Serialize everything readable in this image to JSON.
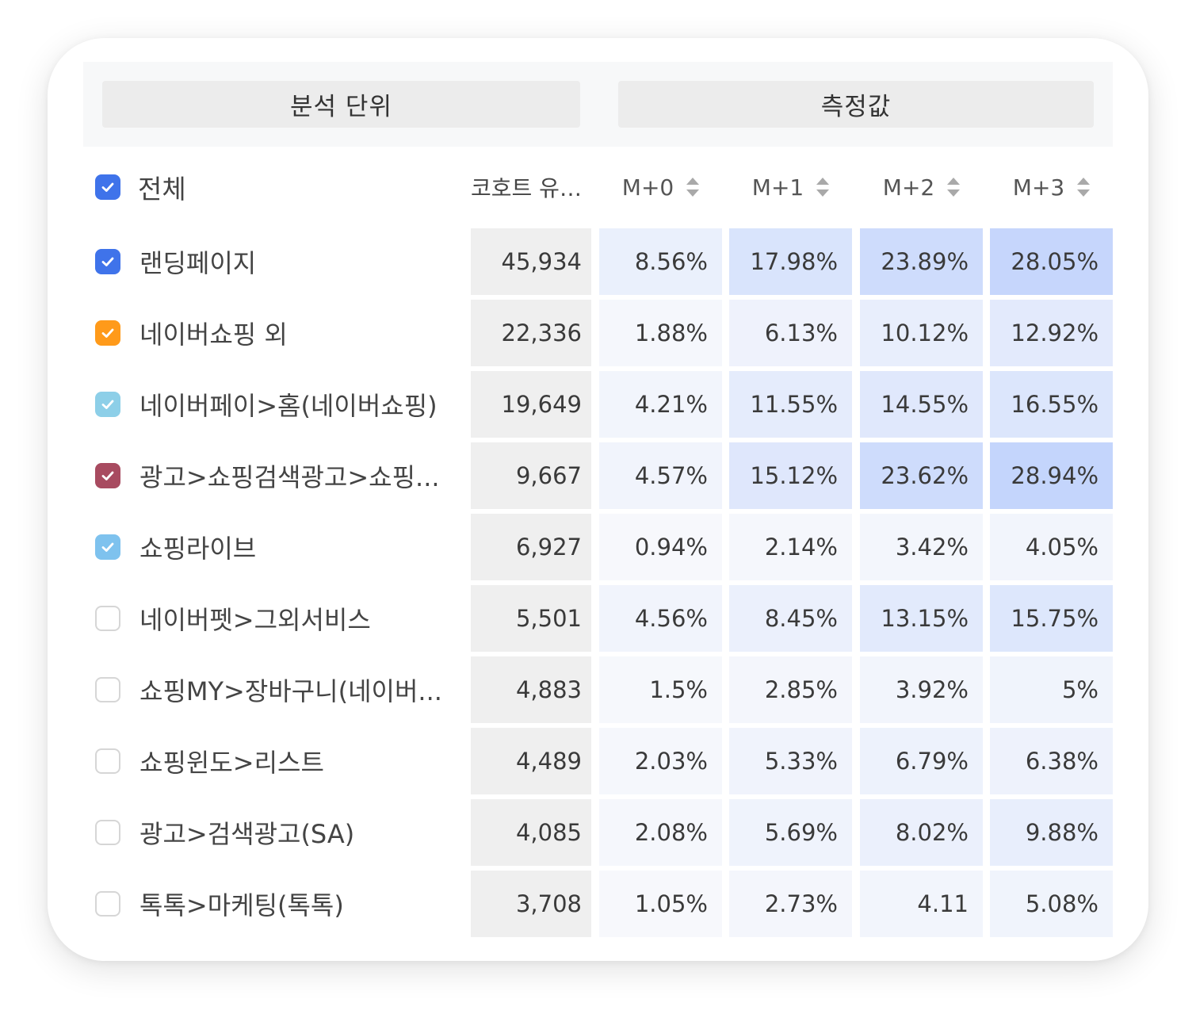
{
  "header": {
    "left_title": "분석 단위",
    "right_title": "측정값"
  },
  "columns": {
    "all_label": "전체",
    "cohort": "코호트 유…",
    "m0": "M+0",
    "m1": "M+1",
    "m2": "M+2",
    "m3": "M+3"
  },
  "colors": {
    "checkbox_blue": "#3f73ea",
    "checkbox_orange": "#ff9a1a",
    "checkbox_lightblue": "#8dcfe8",
    "checkbox_maroon": "#a84b60",
    "checkbox_skyblue": "#7ec2ee",
    "heat_base": "#f8f9fc",
    "heat_high": "#c4d5fc"
  },
  "rows": [
    {
      "label": "랜딩페이지",
      "checked": true,
      "color": "#3f73ea",
      "cohort": "45,934",
      "m0": "8.56%",
      "m1": "17.98%",
      "m2": "23.89%",
      "m3": "28.05%"
    },
    {
      "label": "네이버쇼핑 외",
      "checked": true,
      "color": "#ff9a1a",
      "cohort": "22,336",
      "m0": "1.88%",
      "m1": "6.13%",
      "m2": "10.12%",
      "m3": "12.92%"
    },
    {
      "label": "네이버페이>홈(네이버쇼핑)",
      "checked": true,
      "color": "#8dcfe8",
      "cohort": "19,649",
      "m0": "4.21%",
      "m1": "11.55%",
      "m2": "14.55%",
      "m3": "16.55%"
    },
    {
      "label": "광고>쇼핑검색광고>쇼핑...",
      "checked": true,
      "color": "#a84b60",
      "cohort": "9,667",
      "m0": "4.57%",
      "m1": "15.12%",
      "m2": "23.62%",
      "m3": "28.94%"
    },
    {
      "label": "쇼핑라이브",
      "checked": true,
      "color": "#7ec2ee",
      "cohort": "6,927",
      "m0": "0.94%",
      "m1": "2.14%",
      "m2": "3.42%",
      "m3": "4.05%"
    },
    {
      "label": "네이버펫>그외서비스",
      "checked": false,
      "color": "",
      "cohort": "5,501",
      "m0": "4.56%",
      "m1": "8.45%",
      "m2": "13.15%",
      "m3": "15.75%"
    },
    {
      "label": "쇼핑MY>장바구니(네이버...",
      "checked": false,
      "color": "",
      "cohort": "4,883",
      "m0": "1.5%",
      "m1": "2.85%",
      "m2": "3.92%",
      "m3": "5%"
    },
    {
      "label": "쇼핑윈도>리스트",
      "checked": false,
      "color": "",
      "cohort": "4,489",
      "m0": "2.03%",
      "m1": "5.33%",
      "m2": "6.79%",
      "m3": "6.38%"
    },
    {
      "label": "광고>검색광고(SA)",
      "checked": false,
      "color": "",
      "cohort": "4,085",
      "m0": "2.08%",
      "m1": "5.69%",
      "m2": "8.02%",
      "m3": "9.88%"
    },
    {
      "label": "톡톡>마케팅(톡톡)",
      "checked": false,
      "color": "",
      "cohort": "3,708",
      "m0": "1.05%",
      "m1": "2.73%",
      "m2": "4.11",
      "m3": "5.08%"
    }
  ]
}
